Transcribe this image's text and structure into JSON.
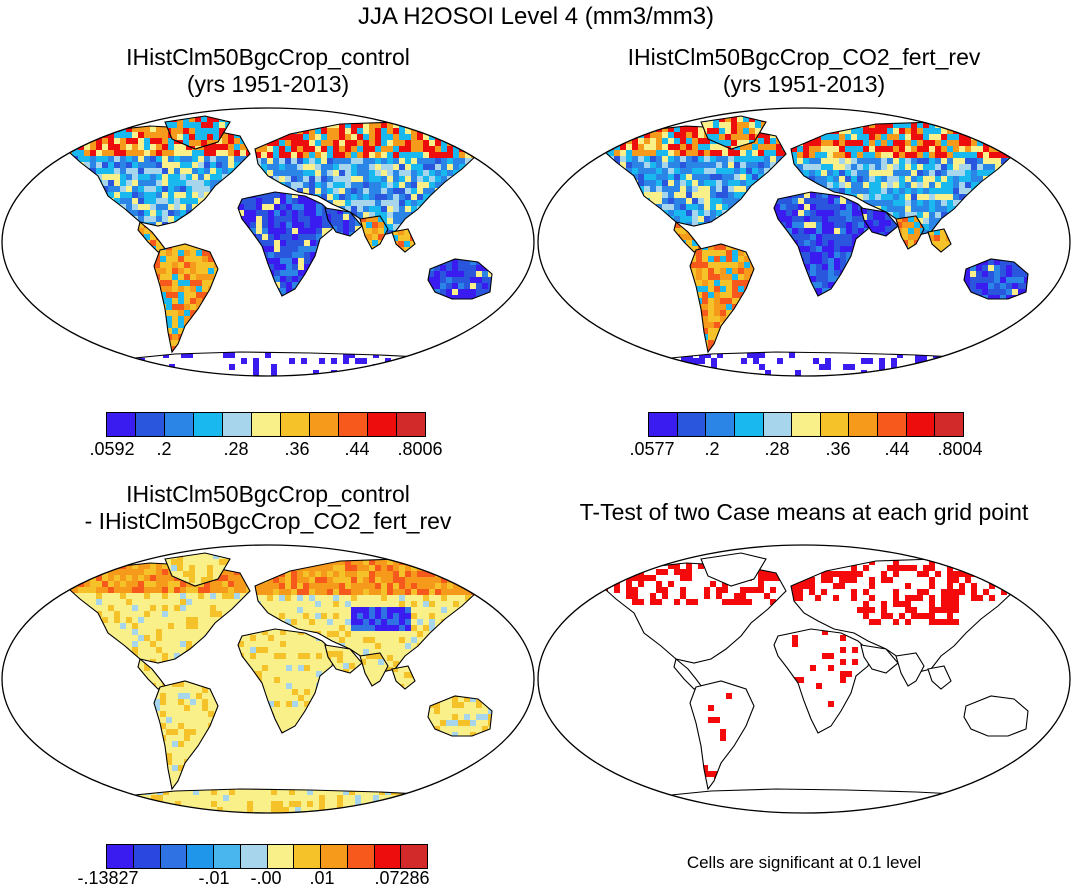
{
  "main_title": "JJA H2OSOI Level 4 (mm3/mm3)",
  "panels": [
    {
      "title_line1": "IHistClm50BgcCrop_control",
      "title_line2": "(yrs 1951-2013)"
    },
    {
      "title_line1": "IHistClm50BgcCrop_CO2_fert_rev",
      "title_line2": "(yrs 1951-2013)"
    },
    {
      "title_line1": "IHistClm50BgcCrop_control",
      "title_line2": "- IHistClm50BgcCrop_CO2_fert_rev"
    },
    {
      "title_line1": "T-Test of two Case means at each grid point",
      "title_line2": ""
    }
  ],
  "colorbars": {
    "control": {
      "colors": [
        "#3a1cf0",
        "#2a55dd",
        "#2b85e6",
        "#19b8ee",
        "#a7d6ec",
        "#faf08a",
        "#f6c22a",
        "#f59a1a",
        "#f7581c",
        "#ee0d0d",
        "#d22a2a"
      ],
      "labels": [
        ".0592",
        ".2",
        ".28",
        ".36",
        ".44",
        ".8006"
      ]
    },
    "co2_fert_rev": {
      "colors": [
        "#3a1cf0",
        "#2a55dd",
        "#2b85e6",
        "#19b8ee",
        "#a7d6ec",
        "#faf08a",
        "#f6c22a",
        "#f59a1a",
        "#f7581c",
        "#ee0d0d",
        "#d22a2a"
      ],
      "labels": [
        ".0577",
        ".2",
        ".28",
        ".36",
        ".44",
        ".8004"
      ]
    },
    "difference": {
      "colors": [
        "#3a1cf0",
        "#2a47e0",
        "#2f72e4",
        "#1f96ea",
        "#49b6ee",
        "#a7d6ec",
        "#faf08a",
        "#f6c22a",
        "#f59a1a",
        "#f7581c",
        "#ee0d0d",
        "#d22a2a"
      ],
      "labels": [
        "-.13827",
        "-.01",
        "-.00",
        ".01",
        ".07286"
      ]
    }
  },
  "significance_note": "Cells are significant at 0.1 level"
}
